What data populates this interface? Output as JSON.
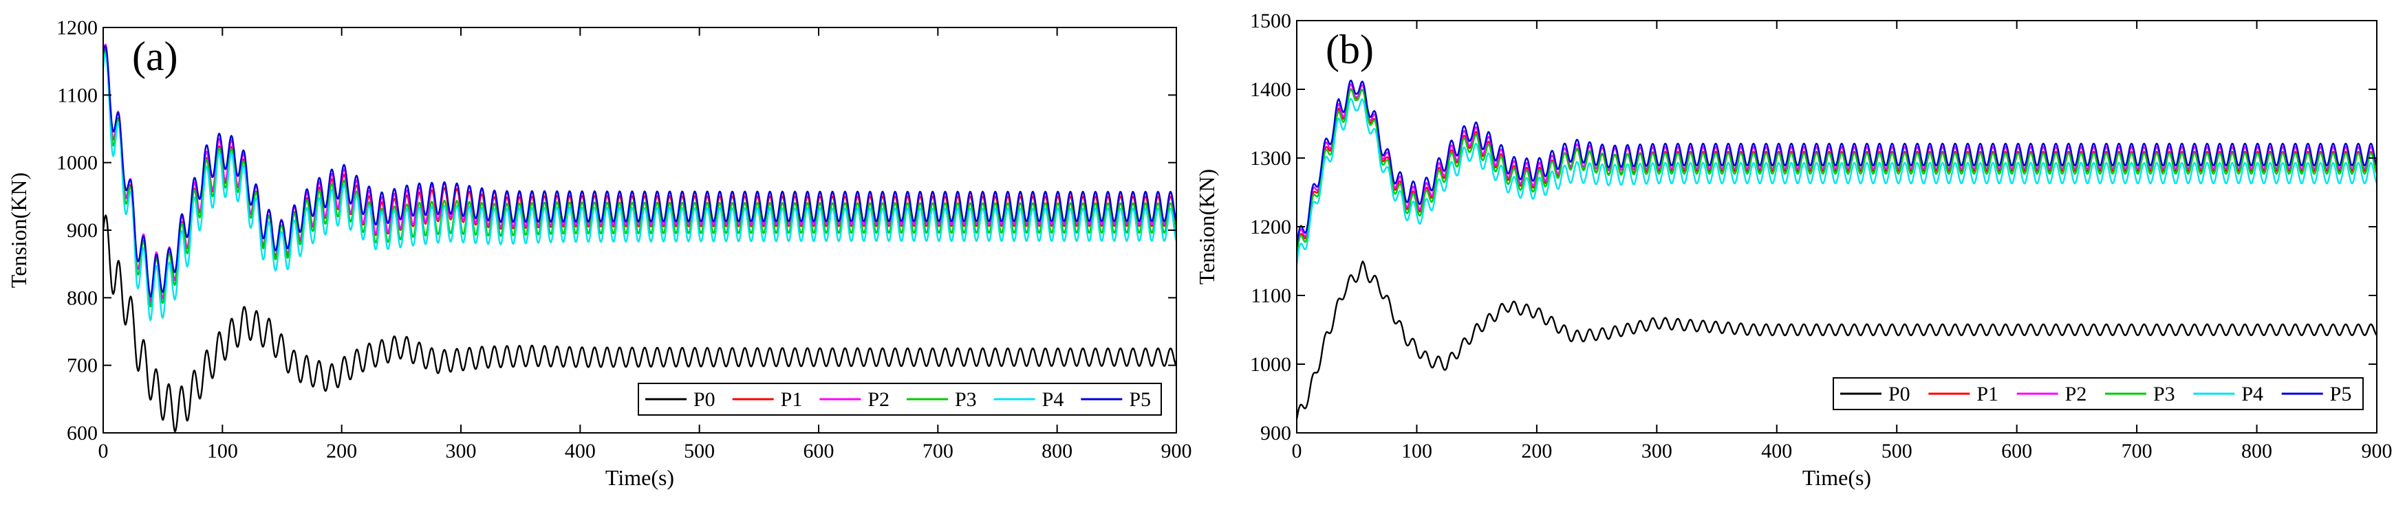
{
  "chart_data": [
    {
      "type": "line",
      "panel_label": "(a)",
      "xlabel": "Time(s)",
      "ylabel": "Tension(KN)",
      "xlim": [
        0,
        900
      ],
      "ylim": [
        600,
        1200
      ],
      "xticks": [
        0,
        100,
        200,
        300,
        400,
        500,
        600,
        700,
        800,
        900
      ],
      "yticks": [
        600,
        700,
        800,
        900,
        1000,
        1100,
        1200
      ],
      "tick_labels_x": [
        "0",
        "100",
        "200",
        "300",
        "400",
        "500",
        "600",
        "700",
        "800",
        "900"
      ],
      "tick_labels_y": [
        "600",
        "700",
        "800",
        "900",
        "1000",
        "1100",
        "1200"
      ],
      "legend_position": "bottom-right",
      "oscillation_period_s": 10.5,
      "series": [
        {
          "name": "P0",
          "color": "#000000",
          "ripple": 13,
          "ripple_decay": 20,
          "envelope": {
            "t": [
              0,
              10,
              20,
              30,
              45,
              60,
              70,
              85,
              100,
              120,
              140,
              160,
              190,
              220,
              250,
              280,
              320,
              360,
              400,
              900
            ],
            "v": [
              900,
              830,
              790,
              720,
              660,
              632,
              645,
              690,
              730,
              765,
              745,
              700,
              680,
              712,
              728,
              705,
              712,
              714,
              712,
              712
            ]
          }
        },
        {
          "name": "P1",
          "color": "#ff0000",
          "ripple": 22,
          "ripple_decay": 6,
          "envelope": {
            "t": [
              0,
              8,
              18,
              28,
              40,
              55,
              70,
              85,
              100,
              115,
              135,
              150,
              175,
              200,
              230,
              260,
              290,
              330,
              380,
              900
            ],
            "v": [
              1155,
              1070,
              990,
              880,
              825,
              835,
              900,
              975,
              1000,
              990,
              900,
              880,
              930,
              960,
              915,
              930,
              940,
              925,
              928,
              928
            ]
          }
        },
        {
          "name": "P2",
          "color": "#ff00ff",
          "ripple": 24,
          "ripple_decay": 7,
          "envelope": {
            "t": [
              0,
              8,
              18,
              28,
              40,
              55,
              70,
              85,
              100,
              115,
              135,
              150,
              175,
              200,
              230,
              260,
              290,
              330,
              380,
              900
            ],
            "v": [
              1158,
              1075,
              995,
              885,
              828,
              838,
              905,
              980,
              1008,
              995,
              905,
              885,
              935,
              965,
              920,
              935,
              945,
              930,
              932,
              932
            ]
          }
        },
        {
          "name": "P3",
          "color": "#00cc00",
          "ripple": 22,
          "ripple_decay": 8,
          "envelope": {
            "t": [
              0,
              8,
              18,
              28,
              40,
              55,
              70,
              85,
              100,
              115,
              135,
              150,
              175,
              200,
              230,
              260,
              290,
              330,
              380,
              900
            ],
            "v": [
              1150,
              1065,
              985,
              875,
              820,
              830,
              895,
              970,
              995,
              985,
              898,
              878,
              925,
              950,
              905,
              915,
              920,
              915,
              918,
              918
            ]
          }
        },
        {
          "name": "P4",
          "color": "#00e5ee",
          "ripple": 24,
          "ripple_decay": 9,
          "envelope": {
            "t": [
              0,
              8,
              18,
              28,
              40,
              55,
              70,
              85,
              100,
              115,
              135,
              150,
              175,
              200,
              230,
              260,
              290,
              330,
              380,
              900
            ],
            "v": [
              1140,
              1055,
              975,
              860,
              805,
              812,
              880,
              955,
              985,
              975,
              885,
              865,
              910,
              940,
              898,
              905,
              910,
              905,
              908,
              908
            ]
          }
        },
        {
          "name": "P5",
          "color": "#0000dd",
          "ripple": 22,
          "ripple_decay": 5,
          "envelope": {
            "t": [
              0,
              8,
              18,
              28,
              40,
              55,
              70,
              85,
              100,
              115,
              135,
              150,
              175,
              200,
              230,
              260,
              290,
              330,
              380,
              900
            ],
            "v": [
              1162,
              1080,
              1000,
              890,
              830,
              842,
              915,
              995,
              1020,
              1005,
              910,
              888,
              945,
              975,
              930,
              945,
              948,
              935,
              935,
              935
            ]
          }
        }
      ]
    },
    {
      "type": "line",
      "panel_label": "(b)",
      "xlabel": "Time(s)",
      "ylabel": "Tension(KN)",
      "xlim": [
        0,
        900
      ],
      "ylim": [
        900,
        1500
      ],
      "xticks": [
        0,
        100,
        200,
        300,
        400,
        500,
        600,
        700,
        800,
        900
      ],
      "yticks": [
        900,
        1000,
        1100,
        1200,
        1300,
        1400,
        1500
      ],
      "tick_labels_x": [
        "0",
        "100",
        "200",
        "300",
        "400",
        "500",
        "600",
        "700",
        "800",
        "900"
      ],
      "tick_labels_y": [
        "900",
        "1000",
        "1100",
        "1200",
        "1300",
        "1400",
        "1500"
      ],
      "legend_position": "bottom-right",
      "oscillation_period_s": 10.5,
      "series": [
        {
          "name": "P0",
          "color": "#000000",
          "ripple": 8,
          "ripple_decay": 3,
          "envelope": {
            "t": [
              0,
              10,
              25,
              40,
              55,
              70,
              90,
              110,
              125,
              150,
              175,
              200,
              230,
              260,
              300,
              340,
              380,
              900
            ],
            "v": [
              920,
              955,
              1040,
              1110,
              1140,
              1110,
              1040,
              1005,
              1000,
              1050,
              1085,
              1075,
              1040,
              1045,
              1060,
              1055,
              1050,
              1050
            ]
          }
        },
        {
          "name": "P1",
          "color": "#ff0000",
          "ripple": 14,
          "ripple_decay": 0,
          "envelope": {
            "t": [
              0,
              10,
              20,
              35,
              50,
              60,
              75,
              90,
              105,
              125,
              145,
              160,
              180,
              200,
              230,
              260,
              300,
              900
            ],
            "v": [
              1160,
              1210,
              1280,
              1360,
              1400,
              1370,
              1290,
              1240,
              1235,
              1290,
              1330,
              1310,
              1275,
              1270,
              1300,
              1290,
              1295,
              1295
            ]
          }
        },
        {
          "name": "P2",
          "color": "#ff00ff",
          "ripple": 16,
          "ripple_decay": 0,
          "envelope": {
            "t": [
              0,
              10,
              20,
              35,
              50,
              60,
              75,
              90,
              105,
              125,
              145,
              160,
              180,
              200,
              230,
              260,
              300,
              900
            ],
            "v": [
              1165,
              1215,
              1285,
              1365,
              1405,
              1375,
              1295,
              1245,
              1240,
              1295,
              1335,
              1315,
              1280,
              1275,
              1305,
              1298,
              1300,
              1300
            ]
          }
        },
        {
          "name": "P3",
          "color": "#00cc00",
          "ripple": 15,
          "ripple_decay": 0,
          "envelope": {
            "t": [
              0,
              10,
              20,
              35,
              50,
              60,
              75,
              90,
              105,
              125,
              145,
              160,
              180,
              200,
              230,
              260,
              300,
              900
            ],
            "v": [
              1158,
              1205,
              1275,
              1355,
              1400,
              1368,
              1285,
              1235,
              1230,
              1285,
              1325,
              1305,
              1270,
              1265,
              1300,
              1290,
              1292,
              1292
            ]
          }
        },
        {
          "name": "P4",
          "color": "#00e5ee",
          "ripple": 15,
          "ripple_decay": 0,
          "envelope": {
            "t": [
              0,
              10,
              20,
              35,
              50,
              60,
              75,
              90,
              105,
              125,
              145,
              160,
              180,
              200,
              230,
              260,
              300,
              900
            ],
            "v": [
              1145,
              1195,
              1265,
              1345,
              1385,
              1355,
              1275,
              1225,
              1218,
              1272,
              1312,
              1292,
              1258,
              1255,
              1280,
              1275,
              1278,
              1278
            ]
          }
        },
        {
          "name": "P5",
          "color": "#0000dd",
          "ripple": 16,
          "ripple_decay": 0,
          "envelope": {
            "t": [
              0,
              10,
              20,
              35,
              50,
              60,
              75,
              90,
              105,
              125,
              145,
              160,
              180,
              200,
              230,
              260,
              300,
              900
            ],
            "v": [
              1170,
              1220,
              1290,
              1372,
              1410,
              1380,
              1300,
              1252,
              1248,
              1302,
              1342,
              1322,
              1286,
              1282,
              1312,
              1302,
              1305,
              1305
            ]
          }
        }
      ]
    }
  ]
}
